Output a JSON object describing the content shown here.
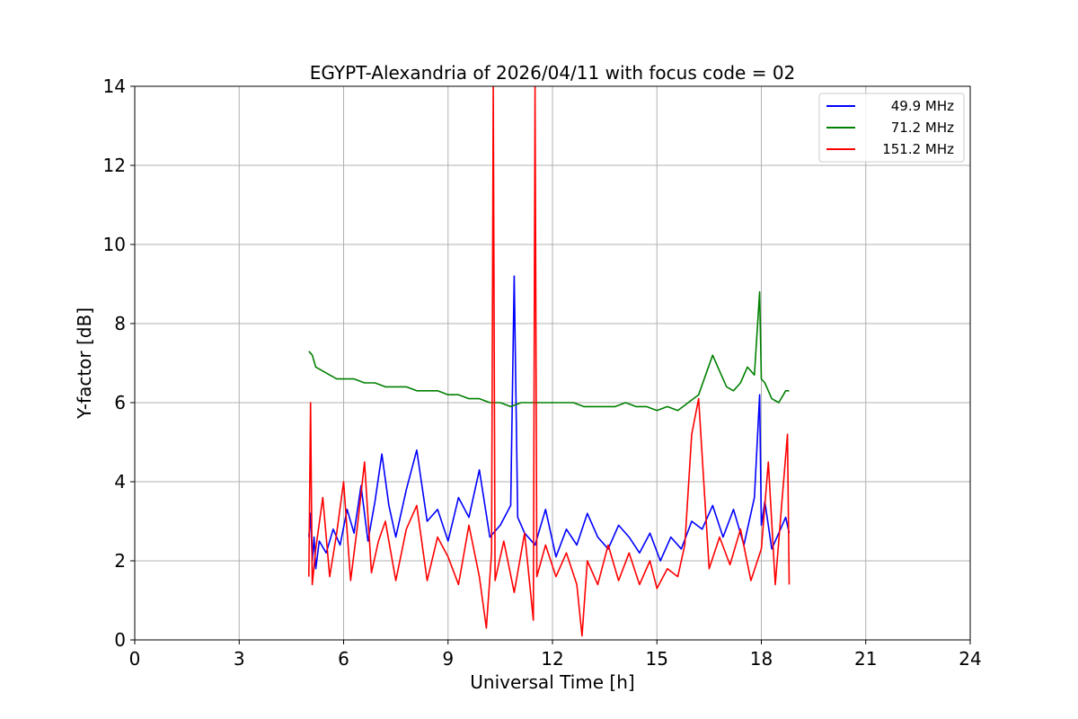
{
  "chart_data": {
    "type": "line",
    "title": "EGYPT-Alexandria of 2026/04/11 with focus code = 02",
    "xlabel": "Universal Time [h]",
    "ylabel": "Y-factor [dB]",
    "xlim": [
      0,
      24
    ],
    "ylim": [
      0,
      14
    ],
    "xticks": [
      0,
      3,
      6,
      9,
      12,
      15,
      18,
      21,
      24
    ],
    "yticks": [
      0,
      2,
      4,
      6,
      8,
      10,
      12,
      14
    ],
    "grid": true,
    "legend_position": "top-right",
    "series": [
      {
        "name": "49.9 MHz",
        "color": "#0000ff",
        "x": [
          5.0,
          5.05,
          5.1,
          5.15,
          5.2,
          5.3,
          5.5,
          5.7,
          5.9,
          6.1,
          6.3,
          6.5,
          6.7,
          6.9,
          7.1,
          7.3,
          7.5,
          7.8,
          8.1,
          8.4,
          8.7,
          9.0,
          9.3,
          9.6,
          9.9,
          10.2,
          10.5,
          10.8,
          10.9,
          11.0,
          11.2,
          11.5,
          11.8,
          12.1,
          12.4,
          12.7,
          13.0,
          13.3,
          13.6,
          13.9,
          14.2,
          14.5,
          14.8,
          15.1,
          15.4,
          15.7,
          16.0,
          16.3,
          16.6,
          16.9,
          17.2,
          17.5,
          17.8,
          17.95,
          18.0,
          18.1,
          18.3,
          18.5,
          18.7,
          18.8
        ],
        "values": [
          2.6,
          3.2,
          2.0,
          2.6,
          1.8,
          2.5,
          2.2,
          2.8,
          2.4,
          3.3,
          2.7,
          3.9,
          2.5,
          3.5,
          4.7,
          3.4,
          2.6,
          3.8,
          4.8,
          3.0,
          3.3,
          2.5,
          3.6,
          3.1,
          4.3,
          2.6,
          2.9,
          3.4,
          9.2,
          3.1,
          2.7,
          2.4,
          3.3,
          2.1,
          2.8,
          2.4,
          3.2,
          2.6,
          2.3,
          2.9,
          2.6,
          2.2,
          2.7,
          2.0,
          2.6,
          2.3,
          3.0,
          2.8,
          3.4,
          2.6,
          3.3,
          2.4,
          3.6,
          6.2,
          2.9,
          3.5,
          2.3,
          2.7,
          3.1,
          2.7
        ]
      },
      {
        "name": "71.2 MHz",
        "color": "#008000",
        "x": [
          5.0,
          5.1,
          5.2,
          5.4,
          5.6,
          5.8,
          6.0,
          6.3,
          6.6,
          6.9,
          7.2,
          7.5,
          7.8,
          8.1,
          8.4,
          8.7,
          9.0,
          9.3,
          9.6,
          9.9,
          10.2,
          10.5,
          10.8,
          11.1,
          11.4,
          11.7,
          12.0,
          12.3,
          12.6,
          12.9,
          13.2,
          13.5,
          13.8,
          14.1,
          14.4,
          14.7,
          15.0,
          15.3,
          15.6,
          15.9,
          16.2,
          16.4,
          16.6,
          16.8,
          17.0,
          17.2,
          17.4,
          17.6,
          17.8,
          17.95,
          18.0,
          18.1,
          18.3,
          18.5,
          18.7,
          18.8
        ],
        "values": [
          7.3,
          7.2,
          6.9,
          6.8,
          6.7,
          6.6,
          6.6,
          6.6,
          6.5,
          6.5,
          6.4,
          6.4,
          6.4,
          6.3,
          6.3,
          6.3,
          6.2,
          6.2,
          6.1,
          6.1,
          6.0,
          6.0,
          5.9,
          6.0,
          6.0,
          6.0,
          6.0,
          6.0,
          6.0,
          5.9,
          5.9,
          5.9,
          5.9,
          6.0,
          5.9,
          5.9,
          5.8,
          5.9,
          5.8,
          6.0,
          6.2,
          6.7,
          7.2,
          6.8,
          6.4,
          6.3,
          6.5,
          6.9,
          6.7,
          8.8,
          6.6,
          6.5,
          6.1,
          6.0,
          6.3,
          6.3
        ]
      },
      {
        "name": "151.2 MHz",
        "color": "#ff0000",
        "x": [
          5.0,
          5.05,
          5.1,
          5.2,
          5.4,
          5.6,
          5.8,
          6.0,
          6.2,
          6.4,
          6.6,
          6.8,
          7.0,
          7.2,
          7.5,
          7.8,
          8.1,
          8.4,
          8.7,
          9.0,
          9.3,
          9.6,
          9.9,
          10.1,
          10.25,
          10.3,
          10.35,
          10.6,
          10.9,
          11.2,
          11.45,
          11.5,
          11.55,
          11.8,
          12.1,
          12.4,
          12.7,
          12.85,
          13.0,
          13.3,
          13.6,
          13.9,
          14.2,
          14.5,
          14.8,
          15.0,
          15.3,
          15.6,
          15.8,
          16.0,
          16.2,
          16.5,
          16.8,
          17.1,
          17.4,
          17.7,
          18.0,
          18.2,
          18.4,
          18.6,
          18.75,
          18.8
        ],
        "values": [
          1.6,
          6.0,
          1.4,
          2.3,
          3.6,
          1.6,
          2.7,
          4.0,
          1.5,
          2.9,
          4.5,
          1.7,
          2.5,
          3.0,
          1.5,
          2.8,
          3.4,
          1.5,
          2.6,
          2.1,
          1.4,
          2.9,
          1.6,
          0.3,
          2.2,
          14.0,
          1.5,
          2.5,
          1.2,
          2.7,
          0.5,
          14.0,
          1.6,
          2.4,
          1.6,
          2.2,
          1.4,
          0.1,
          2.0,
          1.4,
          2.4,
          1.5,
          2.2,
          1.4,
          2.0,
          1.3,
          1.8,
          1.6,
          2.4,
          5.2,
          6.1,
          1.8,
          2.6,
          1.9,
          2.8,
          1.5,
          2.3,
          4.5,
          1.4,
          3.6,
          5.2,
          1.4
        ]
      }
    ]
  }
}
